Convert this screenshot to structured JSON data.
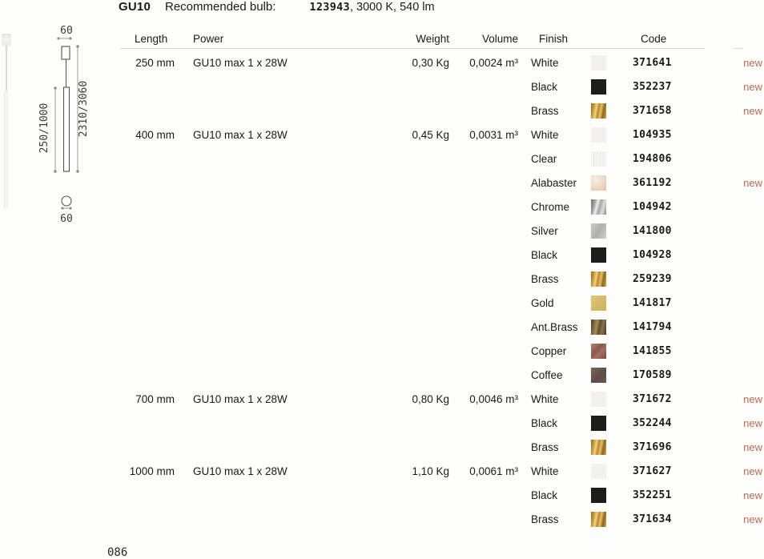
{
  "header": {
    "product": "GU10",
    "recommended_label": "Recommended bulb:",
    "bulb_code": "123943",
    "bulb_specs": ", 3000 K, 540 lm"
  },
  "diagram": {
    "canopy_width": "60",
    "tube_diameter": "60",
    "rod_length_range": "250/1000",
    "overall_length_range": "2310/3060"
  },
  "table": {
    "headers": {
      "length": "Length",
      "power": "Power",
      "weight": "Weight",
      "volume": "Volume",
      "finish": "Finish",
      "code": "Code"
    },
    "new_label": "new",
    "groups": [
      {
        "length": "250 mm",
        "power": "GU10 max 1 x 28W",
        "weight": "0,30 Kg",
        "volume": "0,0024 m³",
        "rows": [
          {
            "finish": "White",
            "swatch": "white",
            "code": "371641",
            "new": true
          },
          {
            "finish": "Black",
            "swatch": "black",
            "code": "352237",
            "new": true
          },
          {
            "finish": "Brass",
            "swatch": "brass",
            "code": "371658",
            "new": true
          }
        ]
      },
      {
        "length": "400 mm",
        "power": "GU10 max 1 x 28W",
        "weight": "0,45 Kg",
        "volume": "0,0031 m³",
        "rows": [
          {
            "finish": "White",
            "swatch": "white",
            "code": "104935",
            "new": false
          },
          {
            "finish": "Clear",
            "swatch": "clear",
            "code": "194806",
            "new": false
          },
          {
            "finish": "Alabaster",
            "swatch": "alabaster",
            "code": "361192",
            "new": true
          },
          {
            "finish": "Chrome",
            "swatch": "chrome",
            "code": "104942",
            "new": false
          },
          {
            "finish": "Silver",
            "swatch": "silver",
            "code": "141800",
            "new": false
          },
          {
            "finish": "Black",
            "swatch": "black",
            "code": "104928",
            "new": false
          },
          {
            "finish": "Brass",
            "swatch": "brass",
            "code": "259239",
            "new": false
          },
          {
            "finish": "Gold",
            "swatch": "gold",
            "code": "141817",
            "new": false
          },
          {
            "finish": "Ant.Brass",
            "swatch": "antbrass",
            "code": "141794",
            "new": false
          },
          {
            "finish": "Copper",
            "swatch": "copper",
            "code": "141855",
            "new": false
          },
          {
            "finish": "Coffee",
            "swatch": "coffee",
            "code": "170589",
            "new": false
          }
        ]
      },
      {
        "length": "700 mm",
        "power": "GU10 max 1 x 28W",
        "weight": "0,80 Kg",
        "volume": "0,0046 m³",
        "rows": [
          {
            "finish": "White",
            "swatch": "white",
            "code": "371672",
            "new": true
          },
          {
            "finish": "Black",
            "swatch": "black",
            "code": "352244",
            "new": true
          },
          {
            "finish": "Brass",
            "swatch": "brass",
            "code": "371696",
            "new": true
          }
        ]
      },
      {
        "length": "1000 mm",
        "power": "GU10 max 1 x 28W",
        "weight": "1,10 Kg",
        "volume": "0,0061 m³",
        "rows": [
          {
            "finish": "White",
            "swatch": "white",
            "code": "371627",
            "new": true
          },
          {
            "finish": "Black",
            "swatch": "black",
            "code": "352251",
            "new": true
          },
          {
            "finish": "Brass",
            "swatch": "brass",
            "code": "371634",
            "new": true
          }
        ]
      }
    ]
  },
  "footer": {
    "page_number": "086"
  },
  "colors": {
    "text": "#1b1a18",
    "new_accent": "#c06a52",
    "header_rule": "#d8d6d2",
    "swatches": {
      "white": "#f3f1ee",
      "black": "#1d1c1a",
      "brass": "#c89a3f",
      "clear": "#f4f3f1",
      "alabaster": "#ecdcc9",
      "chrome": "#a9a9a9",
      "silver": "#bdbdbd",
      "gold": "#d6be68",
      "antbrass": "#77633d",
      "copper": "#96655a",
      "coffee": "#6a5650"
    }
  }
}
